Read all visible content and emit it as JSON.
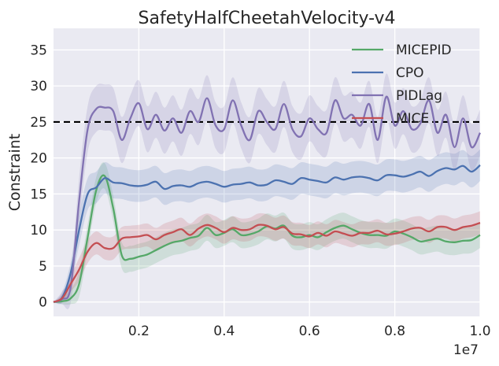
{
  "chart_data": {
    "type": "line",
    "title": "SafetyHalfCheetahVelocity-v4",
    "xlabel": "",
    "ylabel": "Constraint",
    "x_offset_label": "1e7",
    "xlim": [
      0.0,
      1.0
    ],
    "ylim": [
      -2,
      38
    ],
    "xticks": [
      0.2,
      0.4,
      0.6,
      0.8,
      1.0
    ],
    "xtick_labels": [
      "0.2",
      "0.4",
      "0.6",
      "0.8",
      "1.0"
    ],
    "yticks": [
      0,
      5,
      10,
      15,
      20,
      25,
      30,
      35
    ],
    "ytick_labels": [
      "0",
      "5",
      "10",
      "15",
      "20",
      "25",
      "30",
      "35"
    ],
    "grid": true,
    "legend_position": "top-right",
    "threshold": {
      "y": 25,
      "style": "dashed",
      "color": "#000000"
    },
    "x": [
      0.0,
      0.02,
      0.04,
      0.06,
      0.08,
      0.1,
      0.12,
      0.14,
      0.16,
      0.18,
      0.2,
      0.22,
      0.24,
      0.26,
      0.28,
      0.3,
      0.32,
      0.34,
      0.36,
      0.38,
      0.4,
      0.42,
      0.44,
      0.46,
      0.48,
      0.5,
      0.52,
      0.54,
      0.56,
      0.58,
      0.6,
      0.62,
      0.64,
      0.66,
      0.68,
      0.7,
      0.72,
      0.74,
      0.76,
      0.78,
      0.8,
      0.82,
      0.84,
      0.86,
      0.88,
      0.9,
      0.92,
      0.94,
      0.96,
      0.98,
      1.0
    ],
    "series": [
      {
        "name": "MICEPID",
        "color": "#55a868",
        "band": 1.8,
        "values": [
          0,
          0.1,
          0.5,
          2.5,
          9,
          15.5,
          17.5,
          13,
          6.5,
          6,
          6.3,
          6.6,
          7.2,
          7.8,
          8.3,
          8.5,
          8.9,
          9.2,
          10.3,
          9.3,
          9.6,
          10.1,
          9.3,
          9.4,
          9.8,
          10.5,
          10.2,
          10.6,
          9.2,
          9.0,
          9.3,
          9.0,
          9.7,
          10.3,
          10.6,
          10.1,
          9.6,
          9.3,
          9.3,
          9.2,
          9.8,
          9.5,
          9.0,
          8.4,
          8.6,
          8.8,
          8.4,
          8.3,
          8.5,
          8.6,
          9.3
        ]
      },
      {
        "name": "CPO",
        "color": "#4c72b0",
        "band": 2.2,
        "values": [
          0,
          0.6,
          4,
          10,
          15,
          15.9,
          17.2,
          16.6,
          16.5,
          16.2,
          16.1,
          16.3,
          16.7,
          15.7,
          16.1,
          16.2,
          16.0,
          16.5,
          16.7,
          16.4,
          16.0,
          16.3,
          16.4,
          16.6,
          16.2,
          16.3,
          16.9,
          16.7,
          16.4,
          17.2,
          17.0,
          16.8,
          16.6,
          17.3,
          17.0,
          17.3,
          17.4,
          17.2,
          16.9,
          17.6,
          17.6,
          17.4,
          17.7,
          18.1,
          17.5,
          18.2,
          18.6,
          18.4,
          18.9,
          18.1,
          19.0
        ]
      },
      {
        "name": "PIDLag",
        "color": "#8172b2",
        "band": 3.2,
        "values": [
          0,
          0.4,
          2,
          14,
          24,
          26.8,
          27.0,
          26.5,
          22.5,
          25.5,
          27.6,
          24.0,
          26.0,
          23.8,
          25.5,
          23.5,
          26.5,
          25.0,
          28.3,
          24.5,
          24.0,
          28.0,
          24.5,
          22.5,
          26.5,
          25.0,
          24.0,
          27.5,
          24.0,
          23.0,
          25.5,
          24.0,
          23.5,
          28.0,
          25.5,
          26.0,
          24.5,
          27.5,
          22.5,
          28.5,
          24.5,
          26.5,
          24.0,
          24.8,
          28.0,
          23.5,
          26.0,
          21.5,
          25.5,
          21.5,
          23.5
        ]
      },
      {
        "name": "MICE",
        "color": "#c44e52",
        "band": 1.6,
        "values": [
          0,
          0.5,
          2.5,
          4.5,
          7,
          8.2,
          7.5,
          7.5,
          8.8,
          9.0,
          9.1,
          9.3,
          8.7,
          9.3,
          9.7,
          10.1,
          9.3,
          10.2,
          10.7,
          10.3,
          9.7,
          10.3,
          10.0,
          10.1,
          10.7,
          10.6,
          10.1,
          10.4,
          9.5,
          9.4,
          9.1,
          9.6,
          9.2,
          9.8,
          9.5,
          9.2,
          9.6,
          9.6,
          9.9,
          9.4,
          9.5,
          9.8,
          10.2,
          10.3,
          9.8,
          10.4,
          10.4,
          10.0,
          10.4,
          10.6,
          11.0
        ]
      }
    ]
  }
}
